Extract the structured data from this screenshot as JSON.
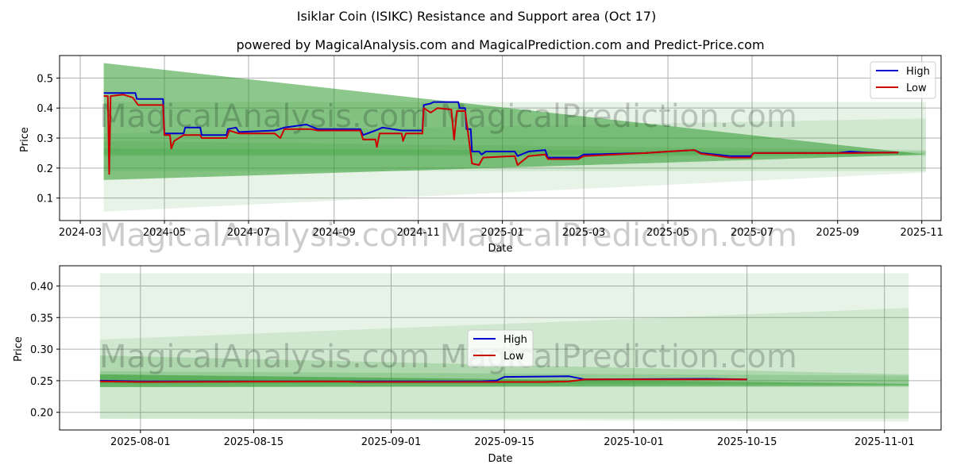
{
  "chart_data": [
    {
      "type": "line",
      "title": "Isiklar Coin (ISIKC) Resistance and Support area (Oct 17)",
      "subtitle": "powered by MagicalAnalysis.com and MagicalPrediction.com and Predict-Price.com",
      "xlabel": "Date",
      "ylabel": "Price",
      "x_start": "2024-02-15",
      "x_end": "2025-11-15",
      "ylim": [
        0.025,
        0.575
      ],
      "xticks": [
        {
          "date": "2024-03-01",
          "label": "2024-03"
        },
        {
          "date": "2024-05-01",
          "label": "2024-05"
        },
        {
          "date": "2024-07-01",
          "label": "2024-07"
        },
        {
          "date": "2024-09-01",
          "label": "2024-09"
        },
        {
          "date": "2024-11-01",
          "label": "2024-11"
        },
        {
          "date": "2025-01-01",
          "label": "2025-01"
        },
        {
          "date": "2025-03-01",
          "label": "2025-03"
        },
        {
          "date": "2025-05-01",
          "label": "2025-05"
        },
        {
          "date": "2025-07-01",
          "label": "2025-07"
        },
        {
          "date": "2025-09-01",
          "label": "2025-09"
        },
        {
          "date": "2025-11-01",
          "label": "2025-11"
        }
      ],
      "yticks": [
        {
          "value": 0.1,
          "label": "0.1"
        },
        {
          "value": 0.2,
          "label": "0.2"
        },
        {
          "value": 0.3,
          "label": "0.3"
        },
        {
          "value": 0.4,
          "label": "0.4"
        },
        {
          "value": 0.5,
          "label": "0.5"
        }
      ],
      "bands": [
        {
          "x": [
            "2024-03-18",
            "2025-11-04"
          ],
          "upper": [
            0.55,
            0.245
          ],
          "lower": [
            0.16,
            0.245
          ],
          "color": "#2e9a2e",
          "opacity": 0.55
        },
        {
          "x": [
            "2024-03-18",
            "2025-11-04"
          ],
          "upper": [
            0.42,
            0.42
          ],
          "lower": [
            0.055,
            0.185
          ],
          "color": "#2e9a2e",
          "opacity": 0.12
        },
        {
          "x": [
            "2024-03-18",
            "2025-11-04"
          ],
          "upper": [
            0.315,
            0.365
          ],
          "lower": [
            0.19,
            0.19
          ],
          "color": "#2e9a2e",
          "opacity": 0.12
        },
        {
          "x": [
            "2024-03-18",
            "2025-11-04"
          ],
          "upper": [
            0.29,
            0.26
          ],
          "lower": [
            0.24,
            0.24
          ],
          "color": "#2e9a2e",
          "opacity": 0.15
        },
        {
          "x": [
            "2024-03-18",
            "2025-11-04"
          ],
          "upper": [
            0.265,
            0.255
          ],
          "lower": [
            0.245,
            0.245
          ],
          "color": "#2e9a2e",
          "opacity": 0.2
        }
      ],
      "series": [
        {
          "name": "High",
          "color": "#0000cc",
          "points": [
            [
              "2024-03-18",
              0.45
            ],
            [
              "2024-04-10",
              0.45
            ],
            [
              "2024-04-11",
              0.43
            ],
            [
              "2024-04-30",
              0.43
            ],
            [
              "2024-05-01",
              0.315
            ],
            [
              "2024-05-15",
              0.315
            ],
            [
              "2024-05-16",
              0.335
            ],
            [
              "2024-05-27",
              0.335
            ],
            [
              "2024-05-28",
              0.31
            ],
            [
              "2024-06-15",
              0.31
            ],
            [
              "2024-06-16",
              0.33
            ],
            [
              "2024-06-22",
              0.335
            ],
            [
              "2024-06-24",
              0.32
            ],
            [
              "2024-07-20",
              0.325
            ],
            [
              "2024-07-27",
              0.335
            ],
            [
              "2024-08-12",
              0.345
            ],
            [
              "2024-08-20",
              0.33
            ],
            [
              "2024-09-20",
              0.33
            ],
            [
              "2024-09-22",
              0.31
            ],
            [
              "2024-10-01",
              0.325
            ],
            [
              "2024-10-06",
              0.335
            ],
            [
              "2024-10-20",
              0.325
            ],
            [
              "2024-10-31",
              0.325
            ],
            [
              "2024-11-04",
              0.325
            ],
            [
              "2024-11-05",
              0.41
            ],
            [
              "2024-11-10",
              0.415
            ],
            [
              "2024-11-12",
              0.42
            ],
            [
              "2024-11-30",
              0.42
            ],
            [
              "2024-12-01",
              0.4
            ],
            [
              "2024-12-05",
              0.4
            ],
            [
              "2024-12-06",
              0.33
            ],
            [
              "2024-12-09",
              0.33
            ],
            [
              "2024-12-10",
              0.255
            ],
            [
              "2024-12-15",
              0.255
            ],
            [
              "2024-12-17",
              0.245
            ],
            [
              "2024-12-20",
              0.255
            ],
            [
              "2025-01-10",
              0.255
            ],
            [
              "2025-01-12",
              0.24
            ],
            [
              "2025-01-20",
              0.255
            ],
            [
              "2025-02-01",
              0.26
            ],
            [
              "2025-02-03",
              0.235
            ],
            [
              "2025-02-25",
              0.235
            ],
            [
              "2025-03-01",
              0.245
            ],
            [
              "2025-04-15",
              0.25
            ],
            [
              "2025-05-01",
              0.255
            ],
            [
              "2025-05-20",
              0.26
            ],
            [
              "2025-05-25",
              0.25
            ],
            [
              "2025-06-15",
              0.24
            ],
            [
              "2025-06-30",
              0.24
            ],
            [
              "2025-07-02",
              0.25
            ],
            [
              "2025-09-01",
              0.25
            ],
            [
              "2025-09-10",
              0.255
            ],
            [
              "2025-09-22",
              0.252
            ],
            [
              "2025-10-15",
              0.252
            ]
          ]
        },
        {
          "name": "Low",
          "color": "#cc0000",
          "points": [
            [
              "2024-03-18",
              0.44
            ],
            [
              "2024-03-21",
              0.44
            ],
            [
              "2024-03-22",
              0.18
            ],
            [
              "2024-03-23",
              0.44
            ],
            [
              "2024-04-01",
              0.445
            ],
            [
              "2024-04-08",
              0.435
            ],
            [
              "2024-04-12",
              0.41
            ],
            [
              "2024-04-30",
              0.41
            ],
            [
              "2024-05-01",
              0.31
            ],
            [
              "2024-05-05",
              0.31
            ],
            [
              "2024-05-06",
              0.265
            ],
            [
              "2024-05-08",
              0.29
            ],
            [
              "2024-05-15",
              0.31
            ],
            [
              "2024-05-27",
              0.31
            ],
            [
              "2024-05-28",
              0.3
            ],
            [
              "2024-06-15",
              0.3
            ],
            [
              "2024-06-17",
              0.325
            ],
            [
              "2024-06-24",
              0.315
            ],
            [
              "2024-07-20",
              0.315
            ],
            [
              "2024-07-24",
              0.3
            ],
            [
              "2024-07-27",
              0.33
            ],
            [
              "2024-08-15",
              0.33
            ],
            [
              "2024-08-20",
              0.325
            ],
            [
              "2024-09-20",
              0.325
            ],
            [
              "2024-09-22",
              0.295
            ],
            [
              "2024-10-01",
              0.295
            ],
            [
              "2024-10-02",
              0.27
            ],
            [
              "2024-10-04",
              0.315
            ],
            [
              "2024-10-20",
              0.315
            ],
            [
              "2024-10-21",
              0.29
            ],
            [
              "2024-10-23",
              0.315
            ],
            [
              "2024-11-04",
              0.315
            ],
            [
              "2024-11-05",
              0.4
            ],
            [
              "2024-11-10",
              0.385
            ],
            [
              "2024-11-15",
              0.4
            ],
            [
              "2024-11-25",
              0.395
            ],
            [
              "2024-11-27",
              0.295
            ],
            [
              "2024-11-29",
              0.39
            ],
            [
              "2024-12-05",
              0.39
            ],
            [
              "2024-12-07",
              0.32
            ],
            [
              "2024-12-10",
              0.215
            ],
            [
              "2024-12-15",
              0.21
            ],
            [
              "2024-12-18",
              0.235
            ],
            [
              "2025-01-10",
              0.24
            ],
            [
              "2025-01-12",
              0.21
            ],
            [
              "2025-01-20",
              0.24
            ],
            [
              "2025-02-01",
              0.245
            ],
            [
              "2025-02-03",
              0.23
            ],
            [
              "2025-02-25",
              0.23
            ],
            [
              "2025-03-01",
              0.24
            ],
            [
              "2025-04-15",
              0.25
            ],
            [
              "2025-05-01",
              0.255
            ],
            [
              "2025-05-20",
              0.26
            ],
            [
              "2025-05-25",
              0.248
            ],
            [
              "2025-06-15",
              0.235
            ],
            [
              "2025-06-30",
              0.235
            ],
            [
              "2025-07-02",
              0.25
            ],
            [
              "2025-09-01",
              0.25
            ],
            [
              "2025-09-12",
              0.25
            ],
            [
              "2025-10-15",
              0.252
            ]
          ]
        }
      ],
      "legend": "upper right"
    },
    {
      "type": "line",
      "title": "",
      "xlabel": "Date",
      "ylabel": "Price",
      "x_start": "2025-07-22",
      "x_end": "2025-11-08",
      "ylim": [
        0.172,
        0.432
      ],
      "xticks": [
        {
          "date": "2025-08-01",
          "label": "2025-08-01"
        },
        {
          "date": "2025-08-15",
          "label": "2025-08-15"
        },
        {
          "date": "2025-09-01",
          "label": "2025-09-01"
        },
        {
          "date": "2025-09-15",
          "label": "2025-09-15"
        },
        {
          "date": "2025-10-01",
          "label": "2025-10-01"
        },
        {
          "date": "2025-10-15",
          "label": "2025-10-15"
        },
        {
          "date": "2025-11-01",
          "label": "2025-11-01"
        }
      ],
      "yticks": [
        {
          "value": 0.2,
          "label": "0.20"
        },
        {
          "value": 0.25,
          "label": "0.25"
        },
        {
          "value": 0.3,
          "label": "0.30"
        },
        {
          "value": 0.35,
          "label": "0.35"
        },
        {
          "value": 0.4,
          "label": "0.40"
        }
      ],
      "bands": [
        {
          "x": [
            "2025-07-27",
            "2025-11-04"
          ],
          "upper": [
            0.42,
            0.42
          ],
          "lower": [
            0.19,
            0.185
          ],
          "color": "#2e9a2e",
          "opacity": 0.12
        },
        {
          "x": [
            "2025-07-27",
            "2025-11-04"
          ],
          "upper": [
            0.315,
            0.365
          ],
          "lower": [
            0.19,
            0.19
          ],
          "color": "#2e9a2e",
          "opacity": 0.12
        },
        {
          "x": [
            "2025-07-27",
            "2025-11-04"
          ],
          "upper": [
            0.29,
            0.26
          ],
          "lower": [
            0.24,
            0.24
          ],
          "color": "#2e9a2e",
          "opacity": 0.2
        },
        {
          "x": [
            "2025-07-27",
            "2025-11-04"
          ],
          "upper": [
            0.265,
            0.258
          ],
          "lower": [
            0.245,
            0.245
          ],
          "color": "#2e9a2e",
          "opacity": 0.2
        },
        {
          "x": [
            "2025-07-27",
            "2025-11-04"
          ],
          "upper": [
            0.26,
            0.245
          ],
          "lower": [
            0.24,
            0.242
          ],
          "color": "#2e9a2e",
          "opacity": 0.55
        }
      ],
      "series": [
        {
          "name": "High",
          "color": "#0000cc",
          "points": [
            [
              "2025-07-27",
              0.25
            ],
            [
              "2025-08-01",
              0.249
            ],
            [
              "2025-08-28",
              0.249
            ],
            [
              "2025-09-12",
              0.249
            ],
            [
              "2025-09-14",
              0.25
            ],
            [
              "2025-09-15",
              0.256
            ],
            [
              "2025-09-23",
              0.257
            ],
            [
              "2025-09-25",
              0.252
            ],
            [
              "2025-10-10",
              0.253
            ],
            [
              "2025-10-15",
              0.252
            ]
          ]
        },
        {
          "name": "Low",
          "color": "#cc0000",
          "points": [
            [
              "2025-07-27",
              0.249
            ],
            [
              "2025-08-01",
              0.248
            ],
            [
              "2025-08-26",
              0.249
            ],
            [
              "2025-08-28",
              0.248
            ],
            [
              "2025-09-20",
              0.248
            ],
            [
              "2025-09-23",
              0.249
            ],
            [
              "2025-09-25",
              0.252
            ],
            [
              "2025-10-15",
              0.252
            ]
          ]
        }
      ],
      "legend": "center"
    }
  ],
  "watermark": "MagicalAnalysis.com   MagicalPrediction.com"
}
